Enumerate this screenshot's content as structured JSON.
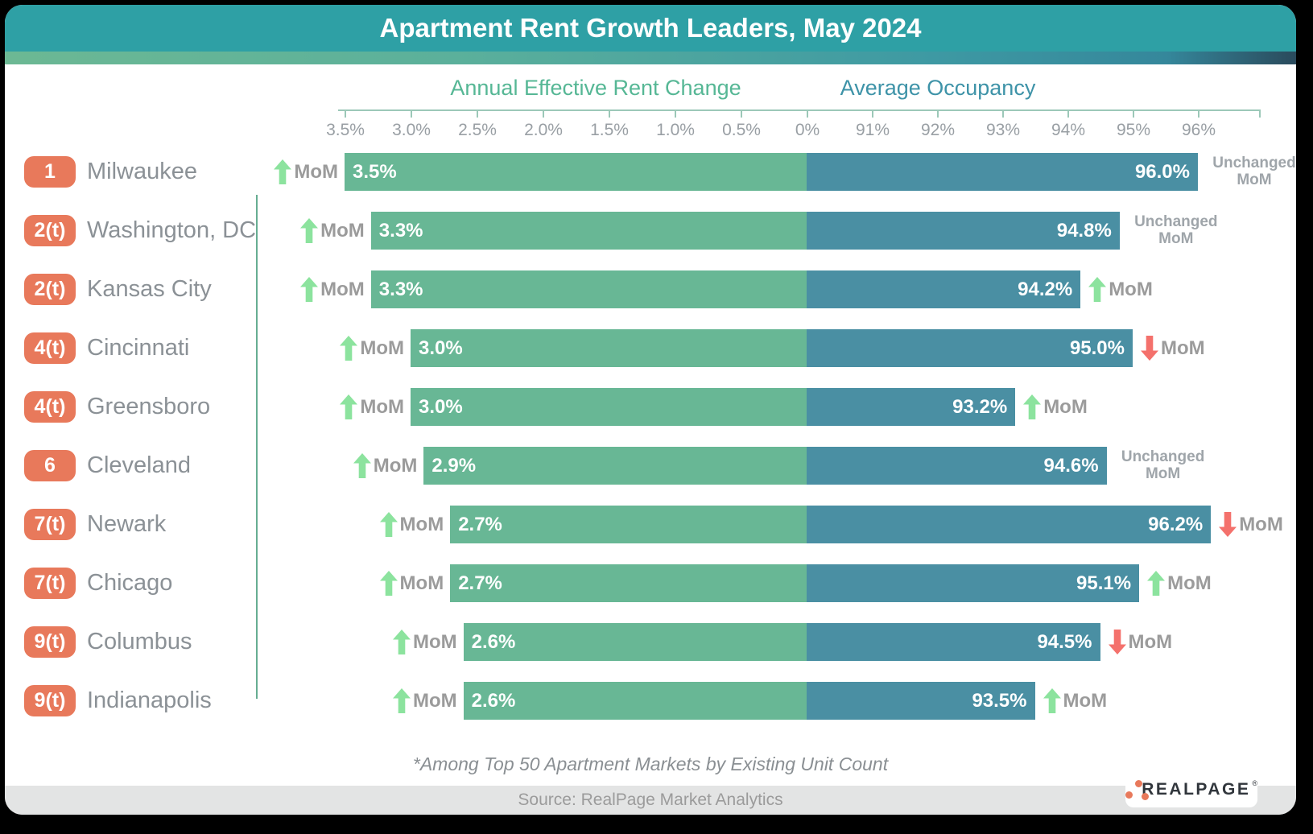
{
  "title": "Apartment Rent Growth Leaders, May 2024",
  "headers": {
    "rent": "Annual Effective Rent Change",
    "occupancy": "Average Occupancy"
  },
  "axis": {
    "rent_ticks": [
      "3.5%",
      "3.0%",
      "2.5%",
      "2.0%",
      "1.5%",
      "1.0%",
      "0.5%",
      "0%"
    ],
    "occupancy_ticks": [
      "91%",
      "92%",
      "93%",
      "94%",
      "95%",
      "96%"
    ]
  },
  "labels": {
    "mom": "MoM",
    "unchanged_line1": "Unchanged",
    "unchanged_line2": "MoM"
  },
  "rows": [
    {
      "rank": "1",
      "city": "Milwaukee",
      "rent_change_pct": 3.5,
      "rent_label": "3.5%",
      "rent_mom": "up",
      "occupancy_pct": 96.0,
      "occupancy_label": "96.0%",
      "occupancy_mom": "unchanged"
    },
    {
      "rank": "2(t)",
      "city": "Washington, DC",
      "rent_change_pct": 3.3,
      "rent_label": "3.3%",
      "rent_mom": "up",
      "occupancy_pct": 94.8,
      "occupancy_label": "94.8%",
      "occupancy_mom": "unchanged"
    },
    {
      "rank": "2(t)",
      "city": "Kansas City",
      "rent_change_pct": 3.3,
      "rent_label": "3.3%",
      "rent_mom": "up",
      "occupancy_pct": 94.2,
      "occupancy_label": "94.2%",
      "occupancy_mom": "up"
    },
    {
      "rank": "4(t)",
      "city": "Cincinnati",
      "rent_change_pct": 3.0,
      "rent_label": "3.0%",
      "rent_mom": "up",
      "occupancy_pct": 95.0,
      "occupancy_label": "95.0%",
      "occupancy_mom": "down"
    },
    {
      "rank": "4(t)",
      "city": "Greensboro",
      "rent_change_pct": 3.0,
      "rent_label": "3.0%",
      "rent_mom": "up",
      "occupancy_pct": 93.2,
      "occupancy_label": "93.2%",
      "occupancy_mom": "up"
    },
    {
      "rank": "6",
      "city": "Cleveland",
      "rent_change_pct": 2.9,
      "rent_label": "2.9%",
      "rent_mom": "up",
      "occupancy_pct": 94.6,
      "occupancy_label": "94.6%",
      "occupancy_mom": "unchanged"
    },
    {
      "rank": "7(t)",
      "city": "Newark",
      "rent_change_pct": 2.7,
      "rent_label": "2.7%",
      "rent_mom": "up",
      "occupancy_pct": 96.2,
      "occupancy_label": "96.2%",
      "occupancy_mom": "down"
    },
    {
      "rank": "7(t)",
      "city": "Chicago",
      "rent_change_pct": 2.7,
      "rent_label": "2.7%",
      "rent_mom": "up",
      "occupancy_pct": 95.1,
      "occupancy_label": "95.1%",
      "occupancy_mom": "up"
    },
    {
      "rank": "9(t)",
      "city": "Columbus",
      "rent_change_pct": 2.6,
      "rent_label": "2.6%",
      "rent_mom": "up",
      "occupancy_pct": 94.5,
      "occupancy_label": "94.5%",
      "occupancy_mom": "down"
    },
    {
      "rank": "9(t)",
      "city": "Indianapolis",
      "rent_change_pct": 2.6,
      "rent_label": "2.6%",
      "rent_mom": "up",
      "occupancy_pct": 93.5,
      "occupancy_label": "93.5%",
      "occupancy_mom": "up"
    }
  ],
  "chart_data": {
    "type": "bar",
    "orientation": "horizontal",
    "layout": "butterfly",
    "title": "Apartment Rent Growth Leaders, May 2024",
    "categories": [
      "Milwaukee",
      "Washington, DC",
      "Kansas City",
      "Cincinnati",
      "Greensboro",
      "Cleveland",
      "Newark",
      "Chicago",
      "Columbus",
      "Indianapolis"
    ],
    "ranks": [
      "1",
      "2(t)",
      "2(t)",
      "4(t)",
      "4(t)",
      "6",
      "7(t)",
      "7(t)",
      "9(t)",
      "9(t)"
    ],
    "series": [
      {
        "name": "Annual Effective Rent Change",
        "unit": "%",
        "values": [
          3.5,
          3.3,
          3.3,
          3.0,
          3.0,
          2.9,
          2.7,
          2.7,
          2.6,
          2.6
        ],
        "mom_direction": [
          "up",
          "up",
          "up",
          "up",
          "up",
          "up",
          "up",
          "up",
          "up",
          "up"
        ],
        "axis_ticks": [
          "3.5%",
          "3.0%",
          "2.5%",
          "2.0%",
          "1.5%",
          "1.0%",
          "0.5%",
          "0%"
        ],
        "axis_range": [
          3.5,
          0
        ]
      },
      {
        "name": "Average Occupancy",
        "unit": "%",
        "values": [
          96.0,
          94.8,
          94.2,
          95.0,
          93.2,
          94.6,
          96.2,
          95.1,
          94.5,
          93.5
        ],
        "mom_direction": [
          "unchanged",
          "unchanged",
          "up",
          "down",
          "up",
          "unchanged",
          "down",
          "up",
          "down",
          "up"
        ],
        "axis_ticks": [
          "91%",
          "92%",
          "93%",
          "94%",
          "95%",
          "96%"
        ],
        "axis_range": [
          90,
          97
        ]
      }
    ],
    "legend_position": "none",
    "grid": false
  },
  "footnote": "*Among Top 50 Apartment Markets by Existing Unit Count",
  "source": "Source: RealPage Market Analytics",
  "logo": {
    "text": "REALPAGE",
    "mark": "®"
  },
  "colors": {
    "title_bar": "#2EA0A5",
    "rent_bar": "#68B795",
    "occupancy_bar": "#4A8FA3",
    "rank_badge": "#E8795B",
    "up_arrow": "#8CE39E",
    "down_arrow": "#F4716C",
    "header_rent": "#56B795",
    "header_occupancy": "#3E93A8",
    "divider": "#66AD92",
    "logo_dot": "#E8795B"
  }
}
